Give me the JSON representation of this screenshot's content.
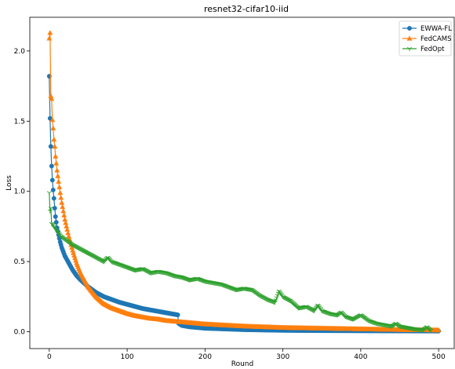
{
  "chart_data": {
    "type": "line",
    "title": "resnet32-cifar10-iid",
    "xlabel": "Round",
    "ylabel": "Loss",
    "xlim": [
      -25,
      520
    ],
    "ylim": [
      -0.12,
      2.24
    ],
    "xticks": [
      0,
      100,
      200,
      300,
      400,
      500
    ],
    "yticks": [
      0.0,
      0.5,
      1.0,
      1.5,
      2.0
    ],
    "xtick_labels": [
      "0",
      "100",
      "200",
      "300",
      "400",
      "500"
    ],
    "ytick_labels": [
      "0.0",
      "0.5",
      "1.0",
      "1.5",
      "2.0"
    ],
    "grid": false,
    "legend_position": "top-right",
    "series": [
      {
        "name": "EWWA-FL",
        "color": "#1f77b4",
        "marker": "circle",
        "x": [
          0,
          1,
          2,
          3,
          4,
          5,
          6,
          7,
          8,
          9,
          10,
          12,
          14,
          16,
          18,
          20,
          25,
          30,
          35,
          40,
          50,
          60,
          70,
          80,
          90,
          100,
          110,
          120,
          130,
          140,
          150,
          160,
          165,
          166,
          170,
          180,
          200,
          250,
          300,
          350,
          400,
          450,
          500
        ],
        "y": [
          1.82,
          1.52,
          1.32,
          1.18,
          1.08,
          1.01,
          0.95,
          0.88,
          0.82,
          0.78,
          0.74,
          0.69,
          0.64,
          0.6,
          0.57,
          0.54,
          0.49,
          0.44,
          0.4,
          0.37,
          0.32,
          0.28,
          0.25,
          0.23,
          0.21,
          0.195,
          0.18,
          0.165,
          0.155,
          0.145,
          0.135,
          0.125,
          0.12,
          0.06,
          0.045,
          0.035,
          0.025,
          0.015,
          0.01,
          0.008,
          0.007,
          0.006,
          0.005
        ]
      },
      {
        "name": "FedCAMS",
        "color": "#ff7f0e",
        "marker": "triangle",
        "x": [
          0,
          1,
          2,
          3,
          4,
          5,
          6,
          7,
          8,
          10,
          12,
          14,
          16,
          18,
          20,
          25,
          30,
          35,
          40,
          50,
          60,
          70,
          80,
          90,
          100,
          110,
          120,
          130,
          140,
          150,
          160,
          170,
          180,
          200,
          250,
          300,
          350,
          400,
          450,
          500
        ],
        "y": [
          2.09,
          2.13,
          1.68,
          1.66,
          1.51,
          1.45,
          1.37,
          1.32,
          1.25,
          1.15,
          1.07,
          0.99,
          0.92,
          0.86,
          0.8,
          0.68,
          0.58,
          0.49,
          0.42,
          0.32,
          0.25,
          0.2,
          0.17,
          0.15,
          0.13,
          0.115,
          0.105,
          0.095,
          0.09,
          0.08,
          0.075,
          0.07,
          0.065,
          0.055,
          0.04,
          0.03,
          0.025,
          0.02,
          0.015,
          0.012
        ]
      },
      {
        "name": "FedOpt",
        "color": "#2ca02c",
        "marker": "tri_down",
        "x": [
          0,
          1,
          2,
          3,
          5,
          8,
          10,
          15,
          20,
          30,
          40,
          50,
          60,
          70,
          75,
          80,
          90,
          100,
          110,
          120,
          130,
          140,
          150,
          160,
          170,
          180,
          190,
          200,
          210,
          220,
          230,
          240,
          250,
          260,
          270,
          280,
          290,
          295,
          300,
          310,
          320,
          330,
          340,
          345,
          350,
          360,
          370,
          375,
          380,
          390,
          400,
          405,
          410,
          420,
          430,
          440,
          445,
          450,
          460,
          470,
          480,
          485,
          490
        ],
        "y": [
          0.99,
          0.86,
          0.88,
          0.77,
          0.76,
          0.73,
          0.72,
          0.68,
          0.66,
          0.62,
          0.59,
          0.56,
          0.53,
          0.5,
          0.53,
          0.5,
          0.48,
          0.46,
          0.44,
          0.45,
          0.42,
          0.43,
          0.42,
          0.4,
          0.39,
          0.37,
          0.38,
          0.36,
          0.35,
          0.34,
          0.32,
          0.3,
          0.31,
          0.3,
          0.26,
          0.23,
          0.21,
          0.29,
          0.25,
          0.22,
          0.17,
          0.18,
          0.15,
          0.19,
          0.15,
          0.13,
          0.12,
          0.14,
          0.11,
          0.09,
          0.12,
          0.1,
          0.08,
          0.06,
          0.05,
          0.04,
          0.06,
          0.04,
          0.03,
          0.02,
          0.015,
          0.035,
          0.01
        ]
      }
    ]
  }
}
